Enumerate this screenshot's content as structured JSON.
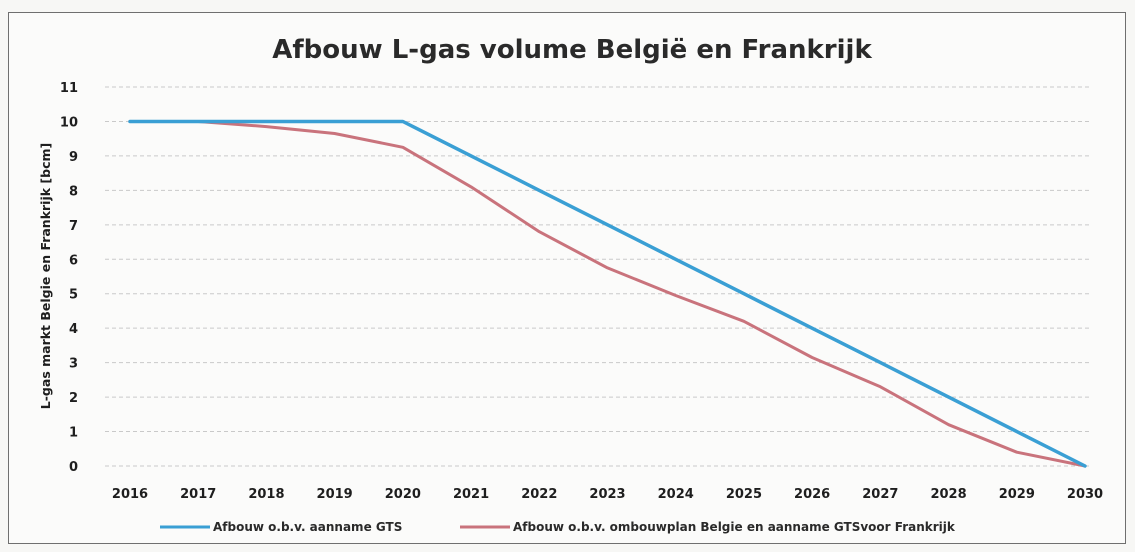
{
  "chart_data": {
    "type": "line",
    "title": "Afbouw L-gas volume België en Frankrijk",
    "ylabel": "L-gas markt Belgie en Frankrijk [bcm]",
    "xlabel": "",
    "x": [
      "2016",
      "2017",
      "2018",
      "2019",
      "2020",
      "2021",
      "2022",
      "2023",
      "2024",
      "2025",
      "2026",
      "2027",
      "2028",
      "2029",
      "2030"
    ],
    "ylim": [
      0,
      11
    ],
    "yticks": [
      "0",
      "1",
      "2",
      "3",
      "4",
      "5",
      "6",
      "7",
      "8",
      "9",
      "10",
      "11"
    ],
    "grid": true,
    "legend_position": "bottom",
    "series": [
      {
        "name": "Afbouw o.b.v. aanname GTS",
        "color": "#3a9fd4",
        "values": [
          10,
          10,
          10,
          10,
          10,
          9,
          8,
          7,
          6,
          5,
          4,
          3,
          2,
          1,
          0
        ]
      },
      {
        "name": "Afbouw o.b.v. ombouwplan Belgie en aanname GTSvoor Frankrijk",
        "color": "#c9737c",
        "values": [
          10,
          10,
          9.85,
          9.65,
          9.25,
          8.1,
          6.8,
          5.75,
          4.95,
          4.2,
          3.15,
          2.3,
          1.2,
          0.4,
          0
        ]
      }
    ]
  }
}
